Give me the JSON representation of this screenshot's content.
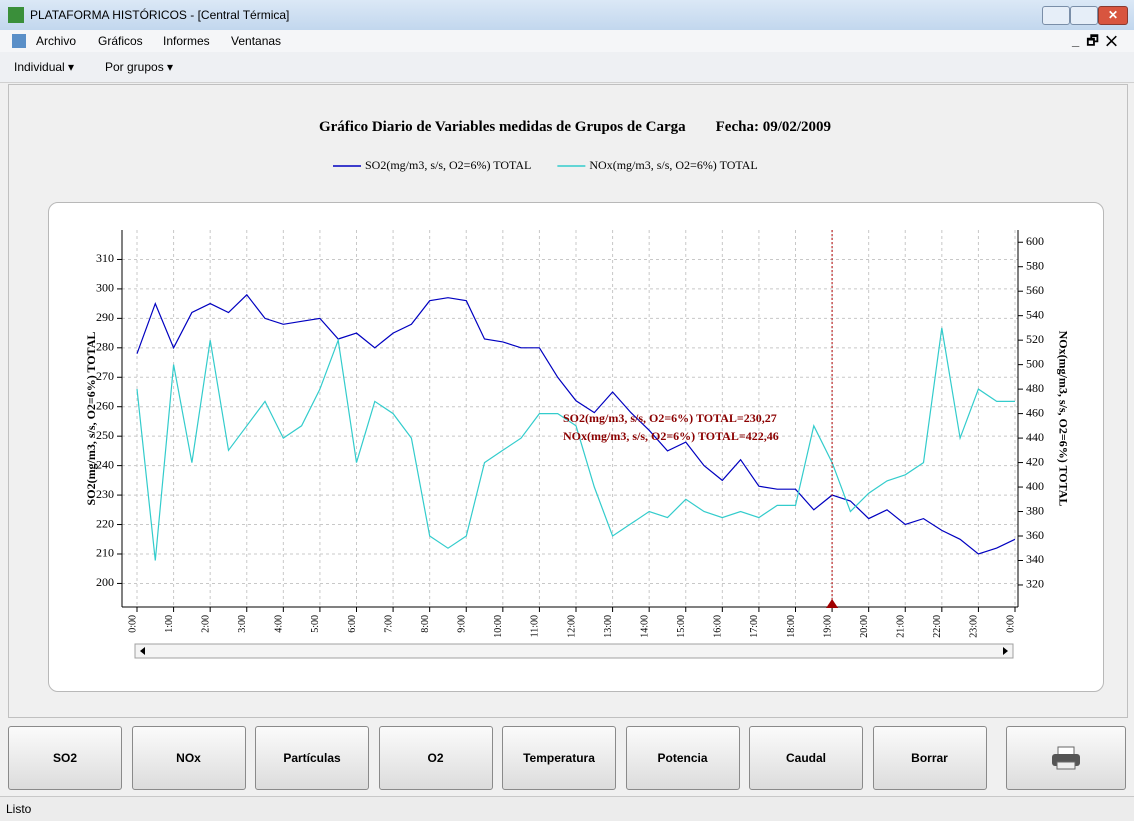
{
  "window": {
    "title": "PLATAFORMA HISTÓRICOS - [Central Térmica]"
  },
  "menu": {
    "items": [
      "Archivo",
      "Gráficos",
      "Informes",
      "Ventanas"
    ]
  },
  "toolbar": {
    "items": [
      "Individual",
      "Por grupos"
    ]
  },
  "chart_data": {
    "type": "line",
    "title": "Gráfico Diario de Variables medidas de Grupos de Carga",
    "subtitle": "Fecha: 09/02/2009",
    "y_label": "SO2(mg/m3, s/s, O2=6%) TOTAL",
    "y2_label": "NOx(mg/m3, s/s, O2=6%) TOTAL",
    "x": [
      0,
      0.5,
      1,
      1.5,
      2,
      2.5,
      3,
      3.5,
      4,
      4.5,
      5,
      5.5,
      6,
      6.5,
      7,
      7.5,
      8,
      8.5,
      9,
      9.5,
      10,
      10.5,
      11,
      11.5,
      12,
      12.5,
      13,
      13.5,
      14,
      14.5,
      15,
      15.5,
      16,
      16.5,
      17,
      17.5,
      18,
      18.5,
      19,
      19.5,
      20,
      20.5,
      21,
      21.5,
      22,
      22.5,
      23,
      23.5,
      24
    ],
    "xlim": [
      0,
      24
    ],
    "xticks": [
      {
        "value": 0,
        "label": "0:00"
      },
      {
        "value": 1,
        "label": "1:00"
      },
      {
        "value": 2,
        "label": "2:00"
      },
      {
        "value": 3,
        "label": "3:00"
      },
      {
        "value": 4,
        "label": "4:00"
      },
      {
        "value": 5,
        "label": "5:00"
      },
      {
        "value": 6,
        "label": "6:00"
      },
      {
        "value": 7,
        "label": "7:00"
      },
      {
        "value": 8,
        "label": "8:00"
      },
      {
        "value": 9,
        "label": "9:00"
      },
      {
        "value": 10,
        "label": "10:00"
      },
      {
        "value": 11,
        "label": "11:00"
      },
      {
        "value": 12,
        "label": "12:00"
      },
      {
        "value": 13,
        "label": "13:00"
      },
      {
        "value": 14,
        "label": "14:00"
      },
      {
        "value": 15,
        "label": "15:00"
      },
      {
        "value": 16,
        "label": "16:00"
      },
      {
        "value": 17,
        "label": "17:00"
      },
      {
        "value": 18,
        "label": "18:00"
      },
      {
        "value": 19,
        "label": "19:00"
      },
      {
        "value": 20,
        "label": "20:00"
      },
      {
        "value": 21,
        "label": "21:00"
      },
      {
        "value": 22,
        "label": "22:00"
      },
      {
        "value": 23,
        "label": "23:00"
      },
      {
        "value": 24,
        "label": "0:00"
      }
    ],
    "ylim": [
      192,
      320
    ],
    "yticks": [
      200,
      210,
      220,
      230,
      240,
      250,
      260,
      270,
      280,
      290,
      300,
      310
    ],
    "y2lim": [
      302,
      610
    ],
    "y2ticks": [
      320,
      340,
      360,
      380,
      400,
      420,
      440,
      460,
      480,
      500,
      520,
      540,
      560,
      580,
      600
    ],
    "grid": true,
    "series": [
      {
        "name": "SO2(mg/m3, s/s, O2=6%) TOTAL",
        "color": "#0000c0",
        "values": [
          278,
          295,
          280,
          292,
          295,
          292,
          298,
          290,
          288,
          289,
          290,
          283,
          285,
          280,
          285,
          288,
          296,
          297,
          296,
          283,
          282,
          280,
          280,
          270,
          262,
          258,
          265,
          258,
          252,
          245,
          248,
          240,
          235,
          242,
          233,
          232,
          232,
          225,
          230,
          228,
          222,
          225,
          220,
          222,
          218,
          215,
          210,
          212,
          215
        ]
      },
      {
        "name": "NOx(mg/m3, s/s, O2=6%) TOTAL",
        "color": "#33cccc",
        "axis": "y2",
        "values": [
          480,
          340,
          500,
          420,
          520,
          430,
          450,
          470,
          440,
          450,
          480,
          520,
          420,
          470,
          460,
          440,
          360,
          350,
          360,
          420,
          430,
          440,
          460,
          460,
          450,
          400,
          360,
          370,
          380,
          375,
          390,
          380,
          375,
          380,
          375,
          385,
          385,
          450,
          420,
          380,
          395,
          405,
          410,
          420,
          530,
          440,
          480,
          470,
          470
        ]
      }
    ],
    "annotations": [
      "SO2(mg/m3, s/s, O2=6%) TOTAL=230,27",
      "NOx(mg/m3, s/s, O2=6%) TOTAL=422,46"
    ],
    "cursor": 19
  },
  "buttons": [
    "SO2",
    "NOx",
    "Partículas",
    "O2",
    "Temperatura",
    "Potencia",
    "Caudal",
    "Borrar"
  ],
  "status": {
    "text": "Listo"
  }
}
